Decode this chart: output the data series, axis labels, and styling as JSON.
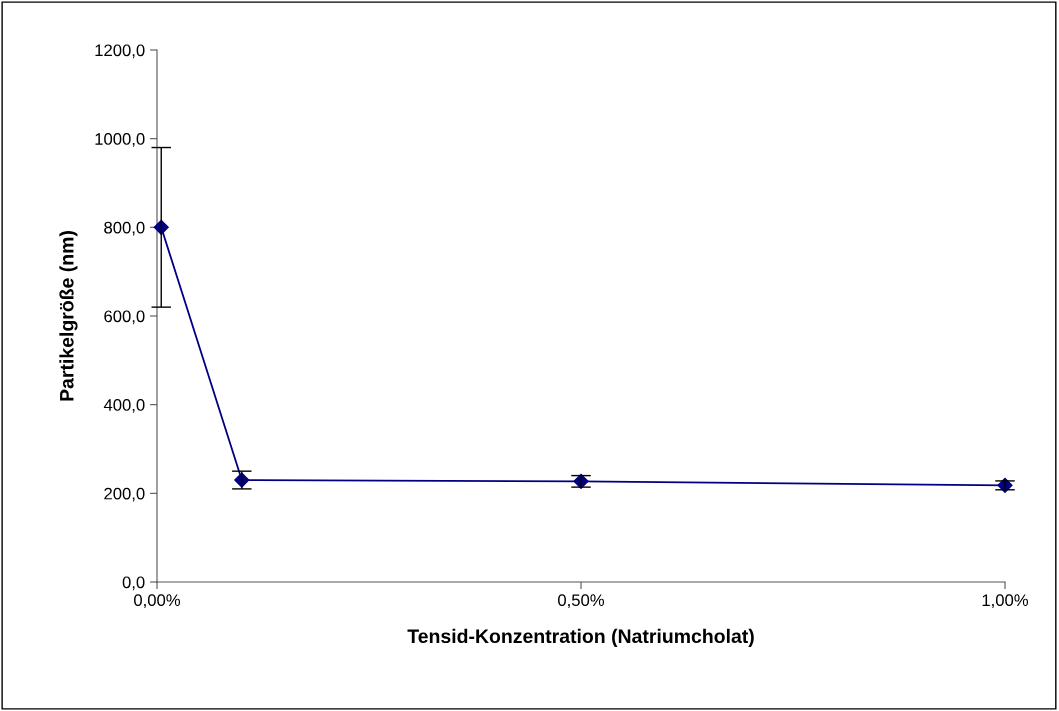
{
  "chart_data": {
    "type": "line",
    "xlabel": "Tensid-Konzentration (Natriumcholat)",
    "ylabel": "Partikelgröße (nm)",
    "x": [
      0.005,
      0.1,
      0.5,
      1.0
    ],
    "series": [
      {
        "color": "#000080",
        "values": [
          800,
          230,
          227,
          218
        ],
        "errors": [
          180,
          20,
          13,
          10
        ]
      }
    ],
    "xlim": [
      0,
      1.0
    ],
    "xticks": [
      {
        "value": 0,
        "label": "0,00%"
      },
      {
        "value": 0.5,
        "label": "0,50%"
      },
      {
        "value": 1.0,
        "label": "1,00%"
      }
    ],
    "ylim": [
      0,
      1200
    ],
    "yticks": [
      {
        "value": 0,
        "label": "0,0"
      },
      {
        "value": 200,
        "label": "200,0"
      },
      {
        "value": 400,
        "label": "400,0"
      },
      {
        "value": 600,
        "label": "600,0"
      },
      {
        "value": 800,
        "label": "800,0"
      },
      {
        "value": 1000,
        "label": "1000,0"
      },
      {
        "value": 1200,
        "label": "1200,0"
      }
    ],
    "grid": false,
    "marker": "diamond",
    "line_style": "solid"
  }
}
